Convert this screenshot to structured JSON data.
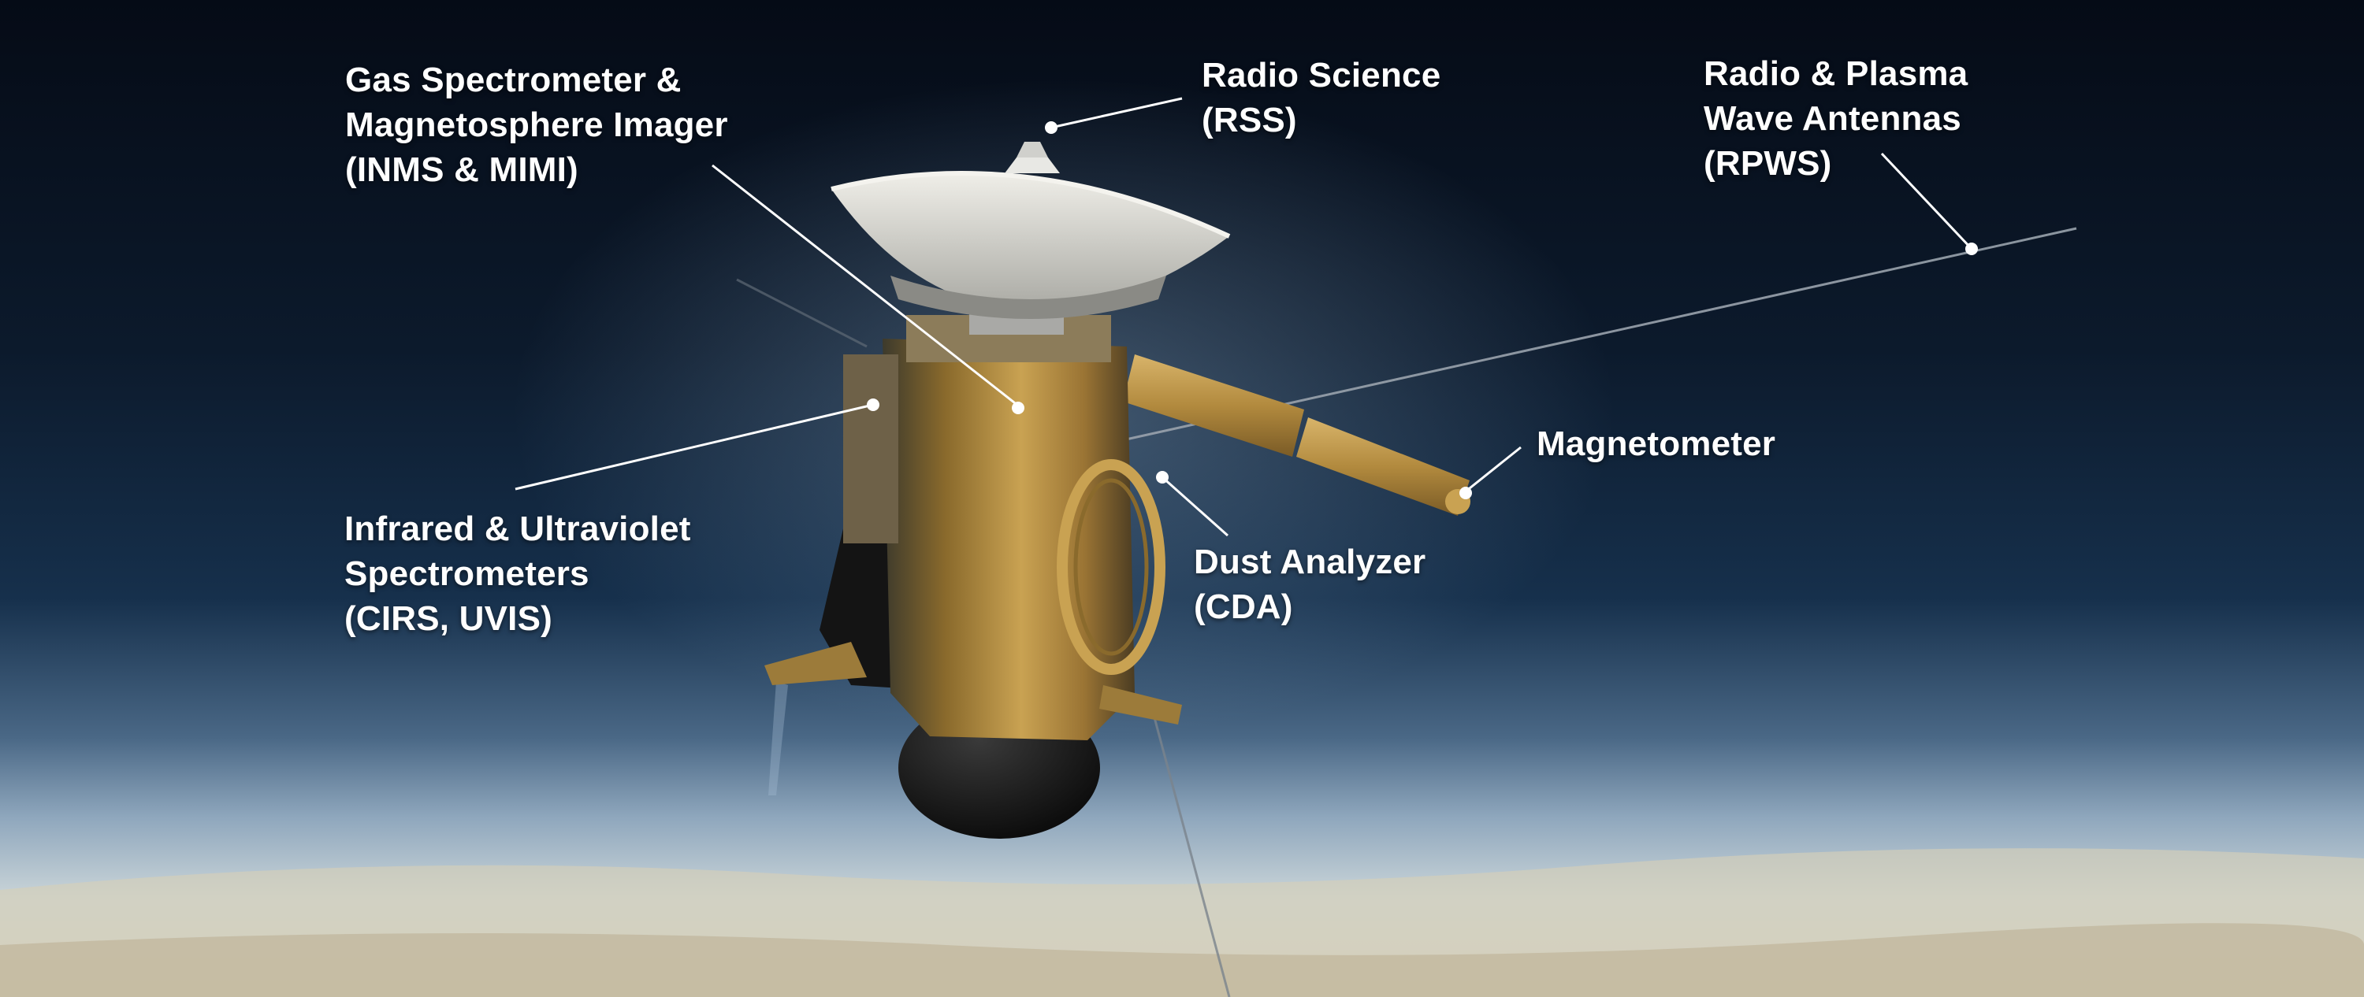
{
  "labels": {
    "inms_mimi": {
      "lines": [
        "Gas Spectrometer &",
        "Magnetosphere Imager",
        "(INMS & MIMI)"
      ]
    },
    "rss": {
      "lines": [
        "Radio Science",
        "(RSS)"
      ]
    },
    "rpws": {
      "lines": [
        "Radio & Plasma",
        "Wave Antennas",
        "(RPWS)"
      ]
    },
    "magnetometer": {
      "lines": [
        "Magnetometer"
      ]
    },
    "cda": {
      "lines": [
        "Dust Analyzer",
        "(CDA)"
      ]
    },
    "cirs_uvis": {
      "lines": [
        "Infrared & Ultraviolet",
        "Spectrometers",
        "(CIRS, UVIS)"
      ]
    }
  },
  "colors": {
    "space_top": "#050b16",
    "space_mid": "#16304c",
    "haze": "#6f8fae",
    "cloud_tops": "#d8d6c9",
    "gold_foil": "#b8923e",
    "dish": "#d9d8d2",
    "leader_line": "#ffffff"
  }
}
